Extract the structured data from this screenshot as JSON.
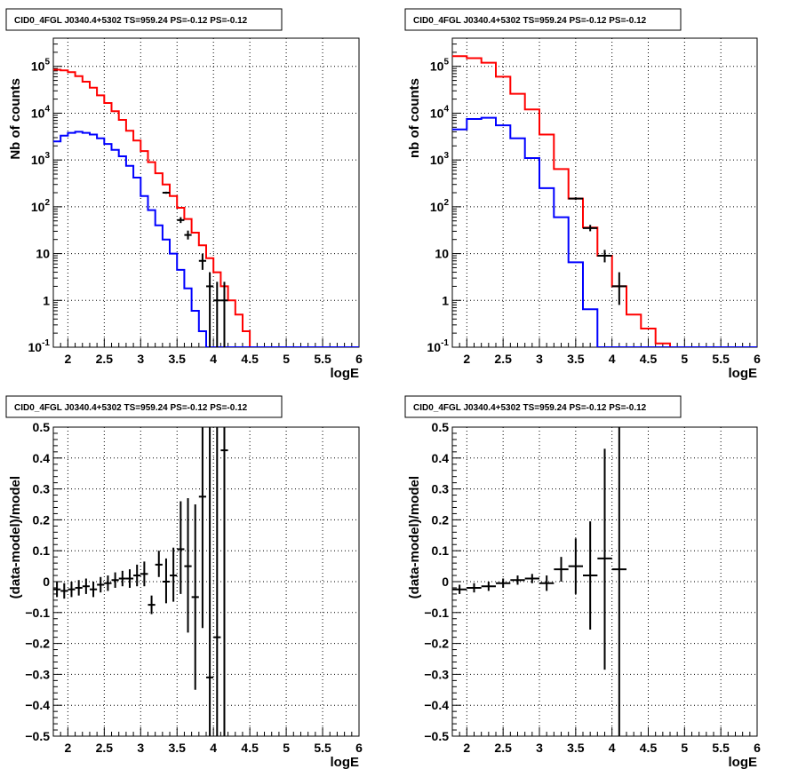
{
  "chart_data": [
    {
      "type": "line",
      "panel": "top-left",
      "title": "CID0_4FGL J0340.4+5302 TS=959.24 PS=-0.12 PS=-0.12",
      "xlabel": "logE",
      "ylabel": "Nb of counts",
      "xlim": [
        1.8,
        6.0
      ],
      "ylim": [
        0.1,
        400000
      ],
      "yscale": "log",
      "grid": true,
      "xticks": [
        "2",
        "2.5",
        "3",
        "3.5",
        "4",
        "4.5",
        "5",
        "5.5",
        "6"
      ],
      "yticks": [
        "10^-1",
        "1",
        "10",
        "10^2",
        "10^3",
        "10^4",
        "10^5"
      ],
      "bin_edges": [
        1.8,
        1.9,
        2.0,
        2.1,
        2.2,
        2.3,
        2.4,
        2.5,
        2.6,
        2.7,
        2.8,
        2.9,
        3.0,
        3.1,
        3.2,
        3.3,
        3.4,
        3.5,
        3.6,
        3.7,
        3.8,
        3.9,
        4.0,
        4.1,
        4.2,
        4.3,
        4.4,
        4.5,
        4.6,
        4.7,
        4.8,
        4.9,
        5.0,
        5.1,
        5.2,
        5.3,
        5.4,
        5.5,
        5.6,
        5.7,
        5.8,
        5.9,
        6.0
      ],
      "series": [
        {
          "color": "#ff0000",
          "values": [
            85000,
            82000,
            75000,
            62000,
            47000,
            35000,
            24000,
            16500,
            11000,
            7200,
            4200,
            2600,
            1550,
            900,
            520,
            300,
            170,
            95,
            55,
            28,
            15,
            8,
            4,
            2,
            1,
            0.5,
            0.22,
            0.1,
            0.1,
            0.1,
            0.1,
            0.1,
            0.1,
            0.1,
            0.1,
            0.1,
            0.1,
            0.1,
            0.1,
            0.1,
            0.1,
            0.1
          ]
        },
        {
          "color": "#0000ff",
          "values": [
            2500,
            3300,
            3800,
            4000,
            3800,
            3500,
            2900,
            2200,
            1650,
            1200,
            750,
            420,
            170,
            85,
            40,
            20,
            10,
            4.5,
            1.8,
            0.6,
            0.22,
            0.1,
            0.1,
            0.1,
            0.1,
            0.1,
            0.1,
            0.1,
            0.1,
            0.1,
            0.1,
            0.1,
            0.1,
            0.1,
            0.1,
            0.1,
            0.1,
            0.1,
            0.1,
            0.1,
            0.1,
            0.1
          ]
        }
      ],
      "points": [
        {
          "x": 3.35,
          "y": 200,
          "xerr": 0.05,
          "ylo": 190,
          "yhi": 210
        },
        {
          "x": 3.55,
          "y": 52,
          "xerr": 0.05,
          "ylo": 45,
          "yhi": 60
        },
        {
          "x": 3.65,
          "y": 25,
          "xerr": 0.05,
          "ylo": 20,
          "yhi": 31
        },
        {
          "x": 3.85,
          "y": 7,
          "xerr": 0.05,
          "ylo": 4.5,
          "yhi": 10
        },
        {
          "x": 3.95,
          "y": 2,
          "xerr": 0.05,
          "ylo": 0.1,
          "yhi": 4
        },
        {
          "x": 4.05,
          "y": 1,
          "xerr": 0.05,
          "ylo": 0.1,
          "yhi": 2.5
        },
        {
          "x": 4.15,
          "y": 1,
          "xerr": 0.05,
          "ylo": 0.1,
          "yhi": 2.5
        }
      ]
    },
    {
      "type": "line",
      "panel": "top-right",
      "title": "CID0_4FGL J0340.4+5302 TS=959.24 PS=-0.12 PS=-0.12",
      "xlabel": "logE",
      "ylabel": "nb of counts",
      "xlim": [
        1.8,
        6.0
      ],
      "ylim": [
        0.1,
        400000
      ],
      "yscale": "log",
      "grid": true,
      "xticks": [
        "2",
        "2.5",
        "3",
        "3.5",
        "4",
        "4.5",
        "5",
        "5.5",
        "6"
      ],
      "yticks": [
        "10^-1",
        "1",
        "10",
        "10^2",
        "10^3",
        "10^4",
        "10^5"
      ],
      "bin_edges": [
        1.8,
        2.0,
        2.2,
        2.4,
        2.6,
        2.8,
        3.0,
        3.2,
        3.4,
        3.6,
        3.8,
        4.0,
        4.2,
        4.4,
        4.6,
        4.8,
        5.0,
        5.2,
        5.4,
        5.6,
        5.8,
        6.0
      ],
      "series": [
        {
          "color": "#ff0000",
          "values": [
            165000,
            150000,
            120000,
            60000,
            26000,
            12000,
            3500,
            640,
            150,
            36,
            9,
            2,
            0.5,
            0.25,
            0.12,
            0.1,
            0.1,
            0.1,
            0.1,
            0.1,
            0.1
          ]
        },
        {
          "color": "#0000ff",
          "values": [
            4500,
            7500,
            8000,
            5500,
            2900,
            1100,
            250,
            60,
            6.5,
            0.65,
            0.1,
            0.1,
            0.1,
            0.1,
            0.1,
            0.1,
            0.1,
            0.1,
            0.1,
            0.1,
            0.1
          ]
        }
      ],
      "points": [
        {
          "x": 3.5,
          "y": 150,
          "xerr": 0.1,
          "ylo": 140,
          "yhi": 160
        },
        {
          "x": 3.7,
          "y": 35,
          "xerr": 0.1,
          "ylo": 30,
          "yhi": 41
        },
        {
          "x": 3.9,
          "y": 9,
          "xerr": 0.1,
          "ylo": 6.5,
          "yhi": 12
        },
        {
          "x": 4.1,
          "y": 2,
          "xerr": 0.1,
          "ylo": 0.8,
          "yhi": 4
        }
      ]
    },
    {
      "type": "scatter",
      "panel": "bottom-left",
      "title": "CID0_4FGL J0340.4+5302 TS=959.24 PS=-0.12 PS=-0.12",
      "xlabel": "logE",
      "ylabel": "(data-model)/model",
      "xlim": [
        1.8,
        6.0
      ],
      "ylim": [
        -0.5,
        0.5
      ],
      "yscale": "linear",
      "grid": true,
      "xticks": [
        "2",
        "2.5",
        "3",
        "3.5",
        "4",
        "4.5",
        "5",
        "5.5",
        "6"
      ],
      "yticks": [
        "-0.5",
        "-0.4",
        "-0.3",
        "-0.2",
        "-0.1",
        "0",
        "0.1",
        "0.2",
        "0.3",
        "0.4",
        "0.5"
      ],
      "points": [
        {
          "x": 1.85,
          "y": -0.025,
          "xerr": 0.05,
          "ylo": -0.05,
          "yhi": 0.0
        },
        {
          "x": 1.95,
          "y": -0.03,
          "xerr": 0.05,
          "ylo": -0.055,
          "yhi": -0.005
        },
        {
          "x": 2.05,
          "y": -0.025,
          "xerr": 0.05,
          "ylo": -0.05,
          "yhi": 0.0
        },
        {
          "x": 2.15,
          "y": -0.02,
          "xerr": 0.05,
          "ylo": -0.045,
          "yhi": 0.005
        },
        {
          "x": 2.25,
          "y": -0.015,
          "xerr": 0.05,
          "ylo": -0.04,
          "yhi": 0.01
        },
        {
          "x": 2.35,
          "y": -0.025,
          "xerr": 0.05,
          "ylo": -0.05,
          "yhi": 0.0
        },
        {
          "x": 2.45,
          "y": -0.01,
          "xerr": 0.05,
          "ylo": -0.035,
          "yhi": 0.015
        },
        {
          "x": 2.55,
          "y": -0.005,
          "xerr": 0.05,
          "ylo": -0.03,
          "yhi": 0.02
        },
        {
          "x": 2.65,
          "y": 0.005,
          "xerr": 0.05,
          "ylo": -0.02,
          "yhi": 0.03
        },
        {
          "x": 2.75,
          "y": 0.01,
          "xerr": 0.05,
          "ylo": -0.015,
          "yhi": 0.035
        },
        {
          "x": 2.85,
          "y": 0.01,
          "xerr": 0.05,
          "ylo": -0.02,
          "yhi": 0.04
        },
        {
          "x": 2.95,
          "y": 0.02,
          "xerr": 0.05,
          "ylo": -0.015,
          "yhi": 0.055
        },
        {
          "x": 3.05,
          "y": 0.025,
          "xerr": 0.05,
          "ylo": -0.015,
          "yhi": 0.065
        },
        {
          "x": 3.15,
          "y": -0.075,
          "xerr": 0.05,
          "ylo": -0.105,
          "yhi": -0.045
        },
        {
          "x": 3.25,
          "y": 0.055,
          "xerr": 0.05,
          "ylo": 0.015,
          "yhi": 0.1
        },
        {
          "x": 3.35,
          "y": 0.0,
          "xerr": 0.05,
          "ylo": -0.07,
          "yhi": 0.075
        },
        {
          "x": 3.45,
          "y": 0.02,
          "xerr": 0.05,
          "ylo": -0.065,
          "yhi": 0.11
        },
        {
          "x": 3.55,
          "y": 0.105,
          "xerr": 0.05,
          "ylo": -0.04,
          "yhi": 0.26
        },
        {
          "x": 3.65,
          "y": 0.05,
          "xerr": 0.05,
          "ylo": -0.165,
          "yhi": 0.27
        },
        {
          "x": 3.75,
          "y": -0.05,
          "xerr": 0.05,
          "ylo": -0.35,
          "yhi": 0.25
        },
        {
          "x": 3.85,
          "y": 0.275,
          "xerr": 0.05,
          "ylo": -0.15,
          "yhi": 0.5
        },
        {
          "x": 3.95,
          "y": -0.31,
          "xerr": 0.05,
          "ylo": -0.5,
          "yhi": 0.5
        },
        {
          "x": 4.05,
          "y": -0.18,
          "xerr": 0.05,
          "ylo": -0.5,
          "yhi": 0.5
        },
        {
          "x": 4.15,
          "y": 0.425,
          "xerr": 0.05,
          "ylo": -0.5,
          "yhi": 0.5
        }
      ]
    },
    {
      "type": "scatter",
      "panel": "bottom-right",
      "title": "CID0_4FGL J0340.4+5302 TS=959.24 PS=-0.12 PS=-0.12",
      "xlabel": "logE",
      "ylabel": "(data-model)/model",
      "xlim": [
        1.8,
        6.0
      ],
      "ylim": [
        -0.5,
        0.5
      ],
      "yscale": "linear",
      "grid": true,
      "xticks": [
        "2",
        "2.5",
        "3",
        "3.5",
        "4",
        "4.5",
        "5",
        "5.5",
        "6"
      ],
      "yticks": [
        "-0.5",
        "-0.4",
        "-0.3",
        "-0.2",
        "-0.1",
        "0",
        "0.1",
        "0.2",
        "0.3",
        "0.4",
        "0.5"
      ],
      "points": [
        {
          "x": 1.9,
          "y": -0.025,
          "xerr": 0.1,
          "ylo": -0.04,
          "yhi": -0.01
        },
        {
          "x": 2.1,
          "y": -0.02,
          "xerr": 0.1,
          "ylo": -0.035,
          "yhi": -0.005
        },
        {
          "x": 2.3,
          "y": -0.015,
          "xerr": 0.1,
          "ylo": -0.03,
          "yhi": 0.0
        },
        {
          "x": 2.5,
          "y": -0.005,
          "xerr": 0.1,
          "ylo": -0.02,
          "yhi": 0.01
        },
        {
          "x": 2.7,
          "y": 0.005,
          "xerr": 0.1,
          "ylo": -0.01,
          "yhi": 0.02
        },
        {
          "x": 2.9,
          "y": 0.01,
          "xerr": 0.1,
          "ylo": -0.005,
          "yhi": 0.025
        },
        {
          "x": 3.1,
          "y": -0.005,
          "xerr": 0.1,
          "ylo": -0.03,
          "yhi": 0.02
        },
        {
          "x": 3.3,
          "y": 0.04,
          "xerr": 0.1,
          "ylo": 0.0,
          "yhi": 0.08
        },
        {
          "x": 3.5,
          "y": 0.05,
          "xerr": 0.1,
          "ylo": -0.04,
          "yhi": 0.14
        },
        {
          "x": 3.7,
          "y": 0.02,
          "xerr": 0.1,
          "ylo": -0.155,
          "yhi": 0.195
        },
        {
          "x": 3.9,
          "y": 0.075,
          "xerr": 0.1,
          "ylo": -0.285,
          "yhi": 0.43
        },
        {
          "x": 4.1,
          "y": 0.04,
          "xerr": 0.1,
          "ylo": -0.5,
          "yhi": 0.5
        }
      ]
    }
  ]
}
